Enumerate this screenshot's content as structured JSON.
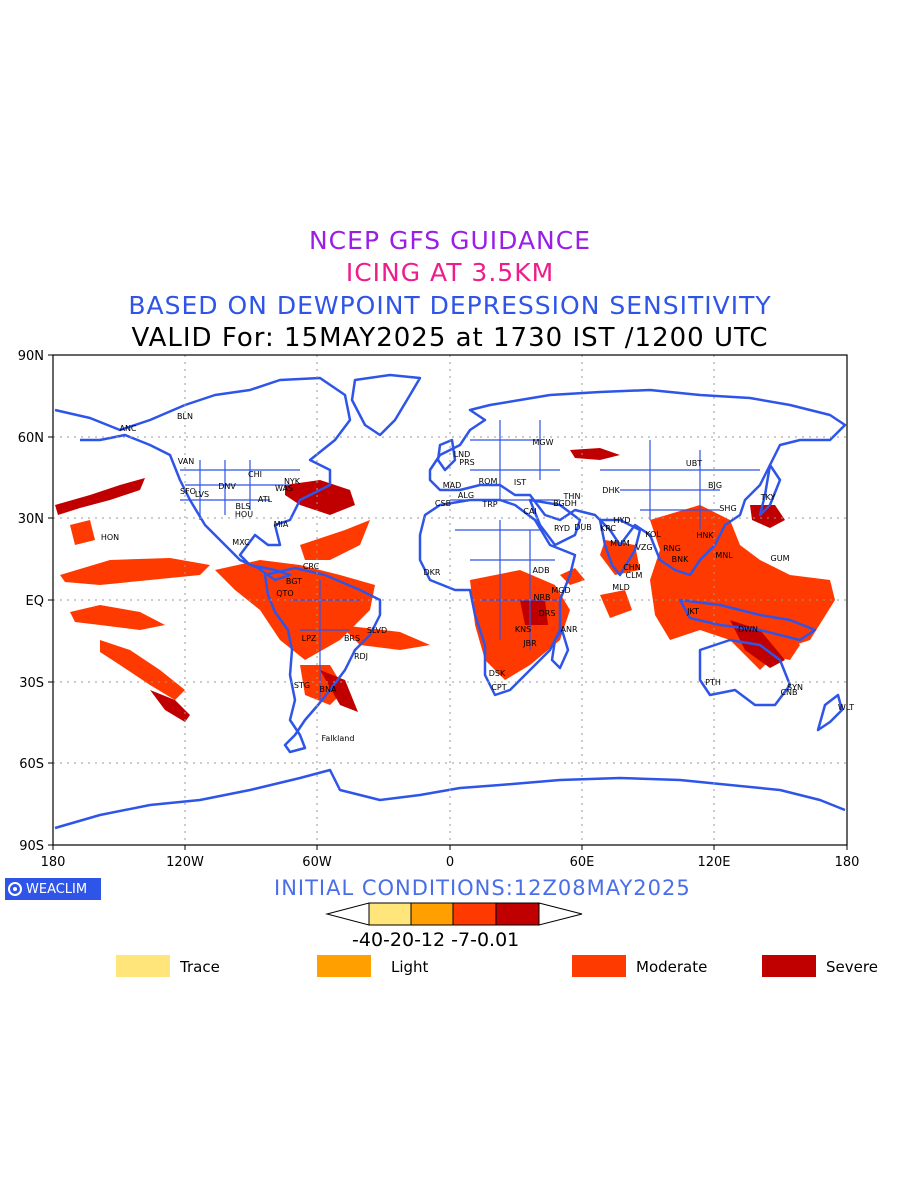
{
  "titles": {
    "line1": "NCEP GFS GUIDANCE",
    "line2": "ICING AT 3.5KM",
    "line3": "BASED ON DEWPOINT DEPRESSION SENSITIVITY",
    "line4": "VALID For: 15MAY2025 at 1730 IST /1200 UTC"
  },
  "axes": {
    "lat_labels": [
      "90N",
      "60N",
      "30N",
      "EQ",
      "30S",
      "60S",
      "90S"
    ],
    "lon_labels": [
      "180",
      "120W",
      "60W",
      "0",
      "60E",
      "120E",
      "180"
    ]
  },
  "brand": "WEACLIM",
  "initial_conditions": "INITIAL CONDITIONS:12Z08MAY2025",
  "colorbar": {
    "labels": "-40-20-12 -7-0.01",
    "colors": [
      "#ffe57a",
      "#ffa000",
      "#ff3a00",
      "#c00000"
    ]
  },
  "legend": [
    {
      "label": "Trace",
      "color": "#ffe57a"
    },
    {
      "label": "Light",
      "color": "#ffa000"
    },
    {
      "label": "Moderate",
      "color": "#ff3a00"
    },
    {
      "label": "Severe",
      "color": "#c00000"
    }
  ],
  "stations": [
    "ANC",
    "BLN",
    "VAN",
    "SFO",
    "LVS",
    "DNV",
    "CHI",
    "BLS",
    "HOU",
    "MIA",
    "MXC",
    "HON",
    "NYK",
    "WAS",
    "ATL",
    "BGT",
    "CRC",
    "QTO",
    "LPZ",
    "BRS",
    "SLVD",
    "RDJ",
    "STG",
    "BNA",
    "Falkland",
    "MGW",
    "LND",
    "PRS",
    "ROM",
    "MAD",
    "IST",
    "CSB",
    "ALG",
    "TRP",
    "CAI",
    "RYD",
    "BGDH",
    "THN",
    "DUB",
    "DHK",
    "KRC",
    "UBT",
    "BJG",
    "SHG",
    "TKY",
    "BNK",
    "KOL",
    "MUM",
    "CHN",
    "MLD",
    "CLM",
    "RNG",
    "HNK",
    "MNL",
    "GUM",
    "JKT",
    "DWN",
    "PTH",
    "SYN",
    "CNB",
    "WLT",
    "DKR",
    "ADB",
    "NRB",
    "DRS",
    "MGD",
    "KNS",
    "JBR",
    "ANR",
    "CPT",
    "DSK",
    "HYD",
    "VZG"
  ],
  "icing_colors": {
    "moderate": "#ff3a00",
    "severe": "#c00000",
    "coast": "#2e55e8",
    "grid": "#999999"
  }
}
